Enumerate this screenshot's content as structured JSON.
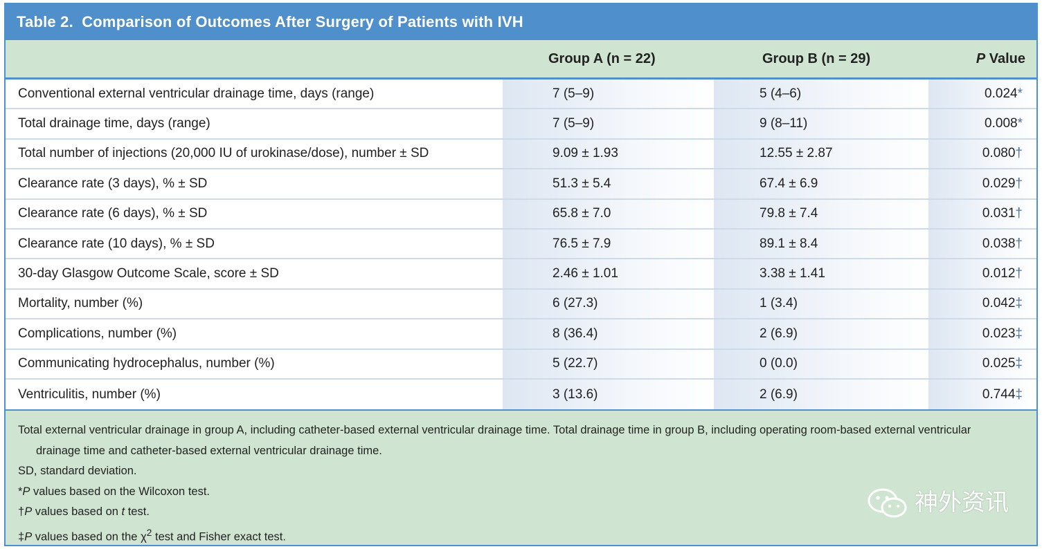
{
  "table": {
    "title_num": "Table 2.",
    "title_text": "Comparison of Outcomes After Surgery of Patients with IVH",
    "columns": [
      "",
      "Group A (n = 22)",
      "Group B (n = 29)",
      "P Value"
    ],
    "rows": [
      {
        "label": "Conventional external ventricular drainage time, days (range)",
        "a": "7 (5–9)",
        "b": "5 (4–6)",
        "p": "0.024",
        "mark": "*"
      },
      {
        "label": "Total drainage time, days (range)",
        "a": "7 (5–9)",
        "b": "9 (8–11)",
        "p": "0.008",
        "mark": "*"
      },
      {
        "label": "Total number of injections (20,000 IU of urokinase/dose), number ± SD",
        "a": "9.09 ± 1.93",
        "b": "12.55 ± 2.87",
        "p": "0.080",
        "mark": "†"
      },
      {
        "label": "Clearance rate (3 days), % ± SD",
        "a": "51.3 ± 5.4",
        "b": "67.4 ± 6.9",
        "p": "0.029",
        "mark": "†"
      },
      {
        "label": "Clearance rate (6 days), % ± SD",
        "a": "65.8 ± 7.0",
        "b": "79.8 ± 7.4",
        "p": "0.031",
        "mark": "†"
      },
      {
        "label": "Clearance rate (10 days), % ± SD",
        "a": "76.5 ± 7.9",
        "b": "89.1 ± 8.4",
        "p": "0.038",
        "mark": "†"
      },
      {
        "label": "30-day Glasgow Outcome Scale, score ± SD",
        "a": "2.46 ± 1.01",
        "b": "3.38 ± 1.41",
        "p": "0.012",
        "mark": "†"
      },
      {
        "label": "Mortality, number (%)",
        "a": "6 (27.3)",
        "b": "1 (3.4)",
        "p": "0.042",
        "mark": "‡"
      },
      {
        "label": "Complications, number (%)",
        "a": "8 (36.4)",
        "b": "2 (6.9)",
        "p": "0.023",
        "mark": "‡"
      },
      {
        "label": "Communicating hydrocephalus, number (%)",
        "a": "5 (22.7)",
        "b": "0 (0.0)",
        "p": "0.025",
        "mark": "‡"
      },
      {
        "label": "Ventriculitis, number (%)",
        "a": "3 (13.6)",
        "b": "2 (6.9)",
        "p": "0.744",
        "mark": "‡"
      }
    ]
  },
  "footnotes": {
    "note1_line1": "Total external ventricular drainage in group A, including catheter-based external ventricular drainage time. Total drainage time in group B, including operating room-based external ventricular",
    "note1_line2": "drainage time and catheter-based external ventricular drainage time.",
    "sd": "SD, standard deviation.",
    "wilcoxon_mark": "*",
    "wilcoxon_p": "P",
    "wilcoxon_text": " values based on the Wilcoxon test.",
    "ttest_mark": "†",
    "ttest_p": "P",
    "ttest_mid": " values based on ",
    "ttest_t": "t",
    "ttest_end": " test.",
    "chi_mark": "‡",
    "chi_p": "P",
    "chi_mid": " values based on the ",
    "chi_sym": "χ",
    "chi_sup": "2",
    "chi_end": " test and Fisher exact test."
  },
  "watermark": {
    "text": "神外资讯",
    "icon": "wechat-icon"
  },
  "colors": {
    "header_blue": "#4f8fcb",
    "band_green": "#cfe5d1"
  }
}
